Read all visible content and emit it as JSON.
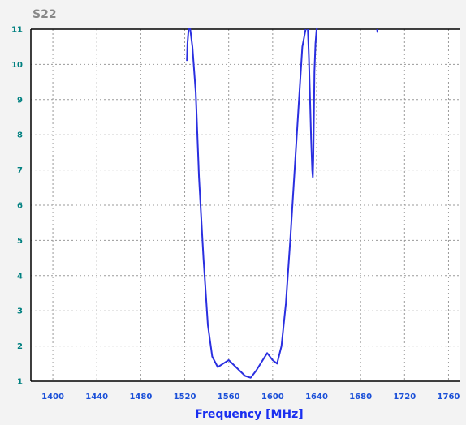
{
  "chart_data": {
    "type": "line",
    "title": "S22",
    "xlabel": "Frequency [MHz]",
    "ylabel": "",
    "xlim": [
      1380,
      1770
    ],
    "ylim": [
      1,
      11
    ],
    "x_ticks": [
      1400,
      1440,
      1480,
      1520,
      1560,
      1600,
      1640,
      1680,
      1720,
      1760
    ],
    "y_ticks": [
      1,
      2,
      3,
      4,
      5,
      6,
      7,
      8,
      9,
      10,
      11
    ],
    "grid": true,
    "legend": "none",
    "series": [
      {
        "color": "#2a2fe0",
        "x": [
          1522,
          1522.5,
          1523.5,
          1525,
          1527,
          1530,
          1533,
          1537,
          1541,
          1545,
          1550,
          1555,
          1560,
          1565,
          1570,
          1575,
          1580,
          1585,
          1590,
          1595,
          1600,
          1604,
          1608,
          1612,
          1616,
          1620,
          1624,
          1627,
          1630
        ],
        "values": [
          10.1,
          10.6,
          11,
          11,
          10.5,
          9.2,
          6.8,
          4.5,
          2.6,
          1.7,
          1.4,
          1.5,
          1.6,
          1.45,
          1.3,
          1.15,
          1.1,
          1.3,
          1.55,
          1.8,
          1.6,
          1.5,
          2.0,
          3.2,
          5.0,
          7.0,
          9.0,
          10.5,
          11
        ]
      },
      {
        "color": "#2a2fe0",
        "x": [
          1632,
          1633,
          1634,
          1635,
          1636,
          1636.5,
          1637,
          1637.5,
          1638,
          1639,
          1640,
          1641
        ],
        "values": [
          11,
          10.2,
          9.0,
          7.9,
          7.0,
          6.8,
          7.3,
          8.5,
          9.8,
          10.6,
          11,
          11
        ]
      },
      {
        "color": "#2a2fe0",
        "x": [
          1695,
          1695.4
        ],
        "values": [
          11,
          10.9
        ]
      }
    ]
  }
}
